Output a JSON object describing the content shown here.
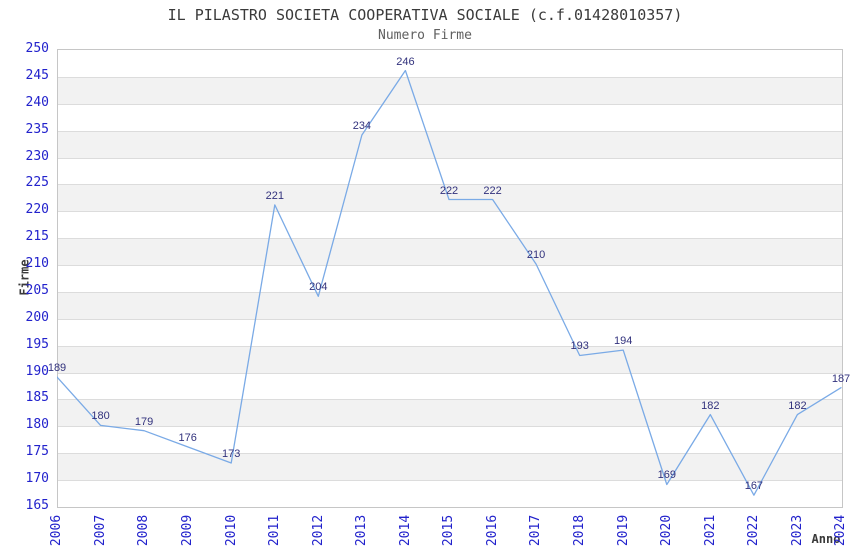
{
  "chart_data": {
    "type": "line",
    "title": "IL PILASTRO SOCIETA COOPERATIVA SOCIALE (c.f.01428010357)",
    "subtitle": "Numero Firme",
    "xlabel": "Anno",
    "ylabel": "Firme",
    "categories": [
      "2006",
      "2007",
      "2008",
      "2009",
      "2010",
      "2011",
      "2012",
      "2013",
      "2014",
      "2015",
      "2016",
      "2017",
      "2018",
      "2019",
      "2020",
      "2021",
      "2022",
      "2023",
      "2024"
    ],
    "series": [
      {
        "name": "Numero Firme",
        "values": [
          189,
          180,
          179,
          176,
          173,
          221,
          204,
          234,
          246,
          222,
          222,
          210,
          193,
          194,
          169,
          182,
          167,
          182,
          187
        ]
      }
    ],
    "data_labels_visible": true,
    "ylim": [
      165,
      250
    ],
    "ytick_step": 5,
    "yticks": [
      165,
      170,
      175,
      180,
      185,
      190,
      195,
      200,
      205,
      210,
      215,
      220,
      225,
      230,
      235,
      240,
      245,
      250
    ],
    "grid": "horizontal gridlines with alternating shaded bands",
    "legend": "none",
    "colors": {
      "line": "#7aaae6",
      "tick_label": "#2222cc",
      "data_label": "#32327d",
      "band_fill": "#f2f2f2",
      "gridline": "#dcdcdc",
      "plot_border": "#c6c6c6",
      "title": "#3a3a3a",
      "subtitle": "#606060",
      "axis_label": "#3a3a3a"
    }
  }
}
